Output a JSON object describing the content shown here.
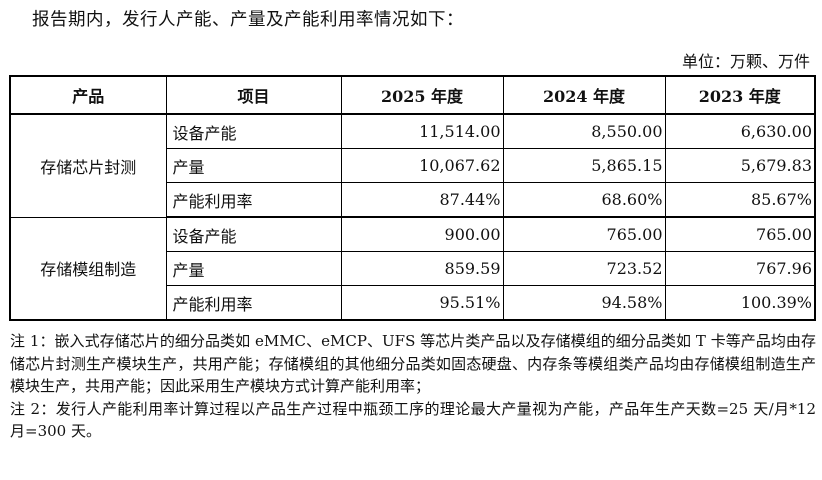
{
  "intro": "报告期内，发行人产能、产量及产能利用率情况如下：",
  "unit": "单位：万颗、万件",
  "table": {
    "headers": [
      "产品",
      "项目",
      "2025 年度",
      "2024 年度",
      "2023 年度"
    ],
    "groups": [
      {
        "product": "存储芯片封测",
        "rows": [
          {
            "item": "设备产能",
            "v2025": "11,514.00",
            "v2024": "8,550.00",
            "v2023": "6,630.00"
          },
          {
            "item": "产量",
            "v2025": "10,067.62",
            "v2024": "5,865.15",
            "v2023": "5,679.83"
          },
          {
            "item": "产能利用率",
            "v2025": "87.44%",
            "v2024": "68.60%",
            "v2023": "85.67%"
          }
        ]
      },
      {
        "product": "存储模组制造",
        "rows": [
          {
            "item": "设备产能",
            "v2025": "900.00",
            "v2024": "765.00",
            "v2023": "765.00"
          },
          {
            "item": "产量",
            "v2025": "859.59",
            "v2024": "723.52",
            "v2023": "767.96"
          },
          {
            "item": "产能利用率",
            "v2025": "95.51%",
            "v2024": "94.58%",
            "v2023": "100.39%"
          }
        ]
      }
    ]
  },
  "notes": [
    "注 1：嵌入式存储芯片的细分品类如 eMMC、eMCP、UFS 等芯片类产品以及存储模组的细分品类如 T 卡等产品均由存储芯片封测生产模块生产，共用产能；存储模组的其他细分品类如固态硬盘、内存条等模组类产品均由存储模组制造生产模块生产，共用产能；因此采用生产模块方式计算产能利用率；",
    "注 2：发行人产能利用率计算过程以产品生产过程中瓶颈工序的理论最大产量视为产能，产品年生产天数=25 天/月*12 月=300 天。"
  ]
}
